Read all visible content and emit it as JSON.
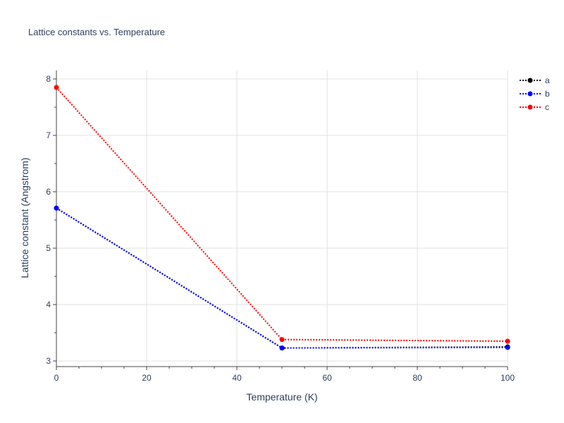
{
  "chart_data": {
    "type": "line",
    "title": "Lattice constants vs. Temperature",
    "xlabel": "Temperature (K)",
    "ylabel": "Lattice constant (Angstrom)",
    "xlim": [
      0,
      100
    ],
    "ylim": [
      2.9,
      8.15
    ],
    "x_ticks": [
      0,
      20,
      40,
      60,
      80,
      100
    ],
    "y_ticks": [
      3,
      4,
      5,
      6,
      7,
      8
    ],
    "grid": true,
    "line_style": "dotted",
    "legend_position": "top-right",
    "x": [
      0,
      50,
      100
    ],
    "series": [
      {
        "name": "a",
        "color": "#000000",
        "values": [
          5.71,
          3.23,
          3.25
        ]
      },
      {
        "name": "b",
        "color": "#0000ff",
        "values": [
          5.71,
          3.23,
          3.24
        ]
      },
      {
        "name": "c",
        "color": "#ff0000",
        "values": [
          7.85,
          3.38,
          3.35
        ]
      }
    ]
  }
}
